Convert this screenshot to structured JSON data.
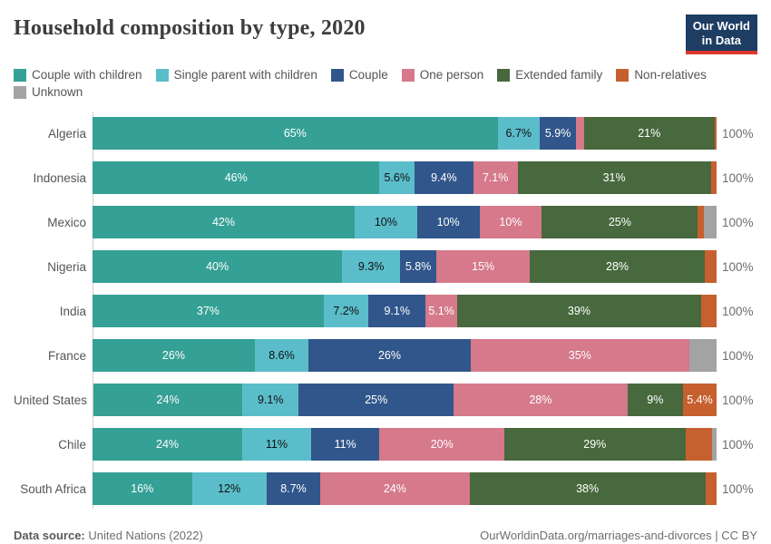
{
  "header": {
    "title": "Household composition by type, 2020",
    "logo": {
      "line1": "Our World",
      "line2": "in Data"
    }
  },
  "chart_data": {
    "type": "bar",
    "stacked": true,
    "orientation": "horizontal",
    "title": "Household composition by type, 2020",
    "x_range_percent": [
      0,
      100
    ],
    "legend_position": "top",
    "categories": [
      "Couple with children",
      "Single parent with children",
      "Couple",
      "One person",
      "Extended family",
      "Non-relatives",
      "Unknown"
    ],
    "palette": {
      "Couple with children": "#35a095",
      "Single parent with children": "#5bbdca",
      "Couple": "#31568b",
      "One person": "#d5798b",
      "Extended family": "#47693d",
      "Non-relatives": "#c7602f",
      "Unknown": "#a3a3a3"
    },
    "rows": [
      {
        "country": "Algeria",
        "total_label": "100%",
        "segments": [
          {
            "category": "Couple with children",
            "value": 65,
            "label": "65%"
          },
          {
            "category": "Single parent with children",
            "value": 6.7,
            "label": "6.7%"
          },
          {
            "category": "Couple",
            "value": 5.9,
            "label": "5.9%"
          },
          {
            "category": "One person",
            "value": 1.2,
            "label": null
          },
          {
            "category": "Extended family",
            "value": 21,
            "label": "21%"
          },
          {
            "category": "Non-relatives",
            "value": 0.3,
            "label": null
          }
        ]
      },
      {
        "country": "Indonesia",
        "total_label": "100%",
        "segments": [
          {
            "category": "Couple with children",
            "value": 46,
            "label": "46%"
          },
          {
            "category": "Single parent with children",
            "value": 5.6,
            "label": "5.6%"
          },
          {
            "category": "Couple",
            "value": 9.4,
            "label": "9.4%"
          },
          {
            "category": "One person",
            "value": 7.1,
            "label": "7.1%"
          },
          {
            "category": "Extended family",
            "value": 31,
            "label": "31%"
          },
          {
            "category": "Non-relatives",
            "value": 0.9,
            "label": null
          }
        ]
      },
      {
        "country": "Mexico",
        "total_label": "100%",
        "segments": [
          {
            "category": "Couple with children",
            "value": 42,
            "label": "42%"
          },
          {
            "category": "Single parent with children",
            "value": 10,
            "label": "10%"
          },
          {
            "category": "Couple",
            "value": 10,
            "label": "10%"
          },
          {
            "category": "One person",
            "value": 10,
            "label": "10%"
          },
          {
            "category": "Extended family",
            "value": 25,
            "label": "25%"
          },
          {
            "category": "Non-relatives",
            "value": 1.0,
            "label": null
          },
          {
            "category": "Unknown",
            "value": 2.0,
            "label": null
          }
        ]
      },
      {
        "country": "Nigeria",
        "total_label": "100%",
        "segments": [
          {
            "category": "Couple with children",
            "value": 40,
            "label": "40%"
          },
          {
            "category": "Single parent with children",
            "value": 9.3,
            "label": "9.3%"
          },
          {
            "category": "Couple",
            "value": 5.8,
            "label": "5.8%"
          },
          {
            "category": "One person",
            "value": 15,
            "label": "15%"
          },
          {
            "category": "Extended family",
            "value": 28,
            "label": "28%"
          },
          {
            "category": "Non-relatives",
            "value": 1.9,
            "label": null
          }
        ]
      },
      {
        "country": "India",
        "total_label": "100%",
        "segments": [
          {
            "category": "Couple with children",
            "value": 37,
            "label": "37%"
          },
          {
            "category": "Single parent with children",
            "value": 7.2,
            "label": "7.2%"
          },
          {
            "category": "Couple",
            "value": 9.1,
            "label": "9.1%"
          },
          {
            "category": "One person",
            "value": 5.1,
            "label": "5.1%"
          },
          {
            "category": "Extended family",
            "value": 39,
            "label": "39%"
          },
          {
            "category": "Non-relatives",
            "value": 2.5,
            "label": null
          }
        ]
      },
      {
        "country": "France",
        "total_label": "100%",
        "segments": [
          {
            "category": "Couple with children",
            "value": 26,
            "label": "26%"
          },
          {
            "category": "Single parent with children",
            "value": 8.6,
            "label": "8.6%"
          },
          {
            "category": "Couple",
            "value": 26,
            "label": "26%"
          },
          {
            "category": "One person",
            "value": 35,
            "label": "35%"
          },
          {
            "category": "Unknown",
            "value": 4.4,
            "label": null
          }
        ]
      },
      {
        "country": "United States",
        "total_label": "100%",
        "segments": [
          {
            "category": "Couple with children",
            "value": 24,
            "label": "24%"
          },
          {
            "category": "Single parent with children",
            "value": 9.1,
            "label": "9.1%"
          },
          {
            "category": "Couple",
            "value": 25,
            "label": "25%"
          },
          {
            "category": "One person",
            "value": 28,
            "label": "28%"
          },
          {
            "category": "Extended family",
            "value": 9,
            "label": "9%"
          },
          {
            "category": "Non-relatives",
            "value": 5.4,
            "label": "5.4%"
          }
        ]
      },
      {
        "country": "Chile",
        "total_label": "100%",
        "segments": [
          {
            "category": "Couple with children",
            "value": 24,
            "label": "24%"
          },
          {
            "category": "Single parent with children",
            "value": 11,
            "label": "11%"
          },
          {
            "category": "Couple",
            "value": 11,
            "label": "11%"
          },
          {
            "category": "One person",
            "value": 20,
            "label": "20%"
          },
          {
            "category": "Extended family",
            "value": 29,
            "label": "29%"
          },
          {
            "category": "Non-relatives",
            "value": 4.3,
            "label": null
          },
          {
            "category": "Unknown",
            "value": 0.7,
            "label": null
          }
        ]
      },
      {
        "country": "South Africa",
        "total_label": "100%",
        "segments": [
          {
            "category": "Couple with children",
            "value": 16,
            "label": "16%"
          },
          {
            "category": "Single parent with children",
            "value": 12,
            "label": "12%"
          },
          {
            "category": "Couple",
            "value": 8.7,
            "label": "8.7%"
          },
          {
            "category": "One person",
            "value": 24,
            "label": "24%"
          },
          {
            "category": "Extended family",
            "value": 38,
            "label": "38%"
          },
          {
            "category": "Non-relatives",
            "value": 1.8,
            "label": null
          }
        ]
      }
    ]
  },
  "footer": {
    "source_label": "Data source:",
    "source_value": " United Nations (2022)",
    "link": "OurWorldinData.org/marriages-and-divorces | CC BY"
  }
}
